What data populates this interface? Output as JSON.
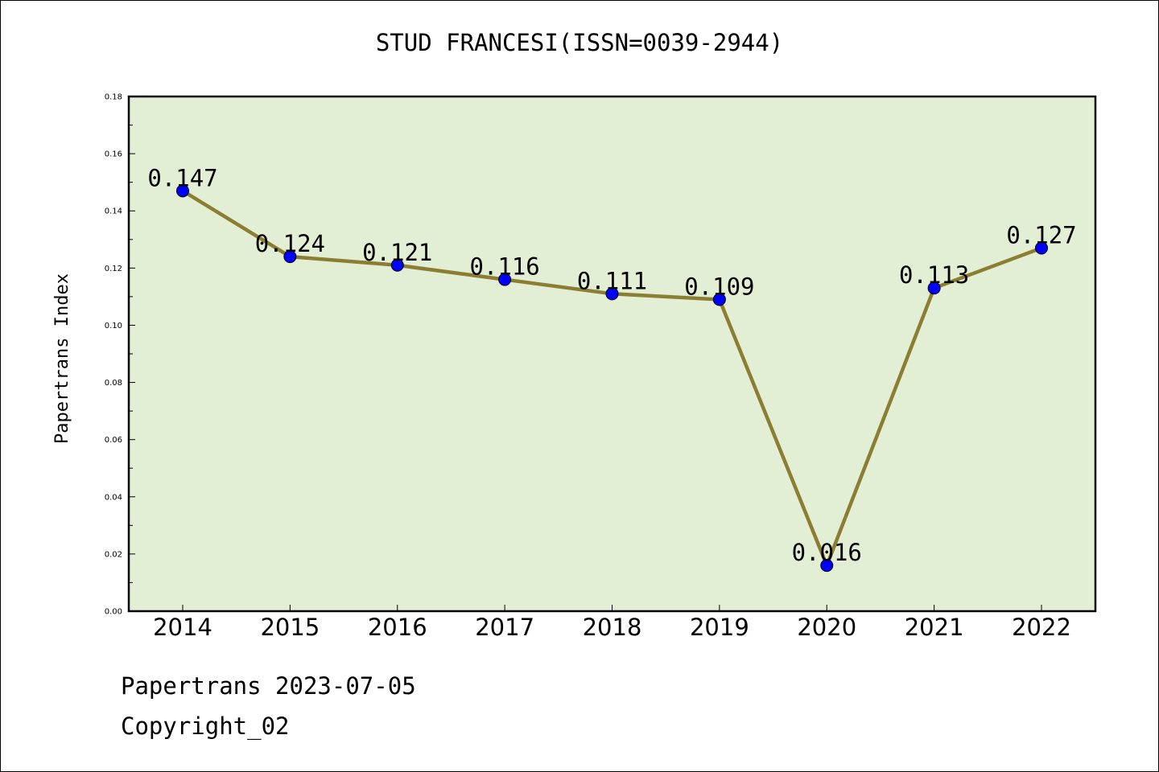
{
  "chart_data": {
    "type": "line",
    "title": "STUD FRANCESI(ISSN=0039-2944)",
    "xlabel": "",
    "ylabel": "Papertrans Index",
    "categories": [
      "2014",
      "2015",
      "2016",
      "2017",
      "2018",
      "2019",
      "2020",
      "2021",
      "2022"
    ],
    "series": [
      {
        "values": [
          0.147,
          0.124,
          0.121,
          0.116,
          0.111,
          0.109,
          0.016,
          0.113,
          0.127
        ]
      }
    ],
    "data_labels": [
      "0.147",
      "0.124",
      "0.121",
      "0.116",
      "0.111",
      "0.109",
      "0.016",
      "0.113",
      "0.127"
    ],
    "ylim": [
      0,
      0.18
    ],
    "yticks": [
      "0.00",
      "0.02",
      "0.04",
      "0.06",
      "0.08",
      "0.10",
      "0.12",
      "0.14",
      "0.16",
      "0.18"
    ],
    "grid": false,
    "colors": {
      "plot_bg": "#e2efd4",
      "line": "#8b7d32",
      "marker": "#0000ff"
    }
  },
  "footer": {
    "date_line": "Papertrans 2023-07-05",
    "copyright": "Copyright_02"
  }
}
